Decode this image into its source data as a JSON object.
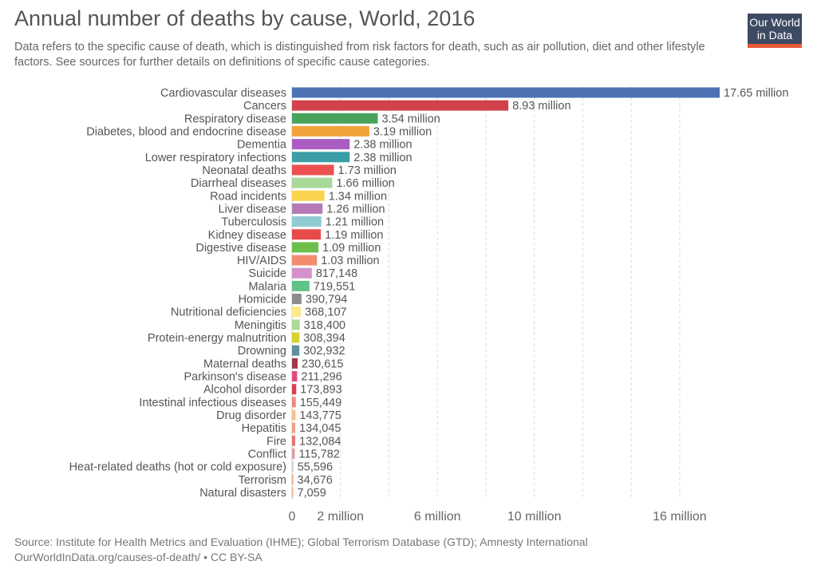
{
  "header": {
    "title": "Annual number of deaths by cause, World, 2016",
    "subtitle": "Data refers to the specific cause of death, which is distinguished from risk factors for death, such as air pollution, diet and other lifestyle factors. See sources for further details on definitions of specific cause categories.",
    "logo_line1": "Our World",
    "logo_line2": "in Data"
  },
  "footer": {
    "source": "Source: Institute for Health Metrics and Evaluation (IHME); Global Terrorism Database (GTD); Amnesty International",
    "link": "OurWorldInData.org/causes-of-death/ • CC BY-SA"
  },
  "chart_data": {
    "type": "bar",
    "orientation": "horizontal",
    "title": "Annual number of deaths by cause, World, 2016",
    "xlim": [
      0,
      17650000
    ],
    "grid": "vertical dashed",
    "gridlines": [
      2000000,
      4000000,
      6000000,
      8000000,
      10000000,
      12000000,
      14000000,
      16000000
    ],
    "xticks": [
      {
        "value": 0,
        "label": "0"
      },
      {
        "value": 2000000,
        "label": "2 million"
      },
      {
        "value": 6000000,
        "label": "6 million"
      },
      {
        "value": 10000000,
        "label": "10 million"
      },
      {
        "value": 16000000,
        "label": "16 million"
      }
    ],
    "bars": [
      {
        "category": "Cardiovascular diseases",
        "value": 17650000,
        "label": "17.65 million",
        "color": "#4c72b4"
      },
      {
        "category": "Cancers",
        "value": 8930000,
        "label": "8.93 million",
        "color": "#d2424a"
      },
      {
        "category": "Respiratory disease",
        "value": 3540000,
        "label": "3.54 million",
        "color": "#4aa35a"
      },
      {
        "category": "Diabetes, blood and endocrine disease",
        "value": 3190000,
        "label": "3.19 million",
        "color": "#f0a33a"
      },
      {
        "category": "Dementia",
        "value": 2380000,
        "label": "2.38 million",
        "color": "#a95dc1"
      },
      {
        "category": "Lower respiratory infections",
        "value": 2380000,
        "label": "2.38 million",
        "color": "#3c9ea6"
      },
      {
        "category": "Neonatal deaths",
        "value": 1730000,
        "label": "1.73 million",
        "color": "#ec5050"
      },
      {
        "category": "Diarrheal diseases",
        "value": 1660000,
        "label": "1.66 million",
        "color": "#a8d89a"
      },
      {
        "category": "Road incidents",
        "value": 1340000,
        "label": "1.34 million",
        "color": "#fbd44f"
      },
      {
        "category": "Liver disease",
        "value": 1260000,
        "label": "1.26 million",
        "color": "#b67ab9"
      },
      {
        "category": "Tuberculosis",
        "value": 1210000,
        "label": "1.21 million",
        "color": "#8ecbd3"
      },
      {
        "category": "Kidney disease",
        "value": 1190000,
        "label": "1.19 million",
        "color": "#e84a4a"
      },
      {
        "category": "Digestive disease",
        "value": 1090000,
        "label": "1.09 million",
        "color": "#6cbf4b"
      },
      {
        "category": "HIV/AIDS",
        "value": 1030000,
        "label": "1.03 million",
        "color": "#f58b6e"
      },
      {
        "category": "Suicide",
        "value": 817148,
        "label": "817,148",
        "color": "#d392c9"
      },
      {
        "category": "Malaria",
        "value": 719551,
        "label": "719,551",
        "color": "#5ec386"
      },
      {
        "category": "Homicide",
        "value": 390794,
        "label": "390,794",
        "color": "#8c8c8c"
      },
      {
        "category": "Nutritional deficiencies",
        "value": 368107,
        "label": "368,107",
        "color": "#fde98a"
      },
      {
        "category": "Meningitis",
        "value": 318400,
        "label": "318,400",
        "color": "#acd996"
      },
      {
        "category": "Protein-energy malnutrition",
        "value": 308394,
        "label": "308,394",
        "color": "#d6d333"
      },
      {
        "category": "Drowning",
        "value": 302932,
        "label": "302,932",
        "color": "#5f939c"
      },
      {
        "category": "Maternal deaths",
        "value": 230615,
        "label": "230,615",
        "color": "#a03848"
      },
      {
        "category": "Parkinson's disease",
        "value": 211296,
        "label": "211,296",
        "color": "#e24a7a"
      },
      {
        "category": "Alcohol disorder",
        "value": 173893,
        "label": "173,893",
        "color": "#de3a56"
      },
      {
        "category": "Intestinal infectious diseases",
        "value": 155449,
        "label": "155,449",
        "color": "#ef8a80"
      },
      {
        "category": "Drug disorder",
        "value": 143775,
        "label": "143,775",
        "color": "#f8c08e"
      },
      {
        "category": "Hepatitis",
        "value": 134045,
        "label": "134,045",
        "color": "#f0a288"
      },
      {
        "category": "Fire",
        "value": 132084,
        "label": "132,084",
        "color": "#e07a78"
      },
      {
        "category": "Conflict",
        "value": 115782,
        "label": "115,782",
        "color": "#d9a0a0"
      },
      {
        "category": "Heat-related deaths (hot or cold exposure)",
        "value": 55596,
        "label": "55,596",
        "color": "#cccccc"
      },
      {
        "category": "Terrorism",
        "value": 34676,
        "label": "34,676",
        "color": "#e8a27e"
      },
      {
        "category": "Natural disasters",
        "value": 7059,
        "label": "7,059",
        "color": "#f0b090"
      }
    ]
  }
}
